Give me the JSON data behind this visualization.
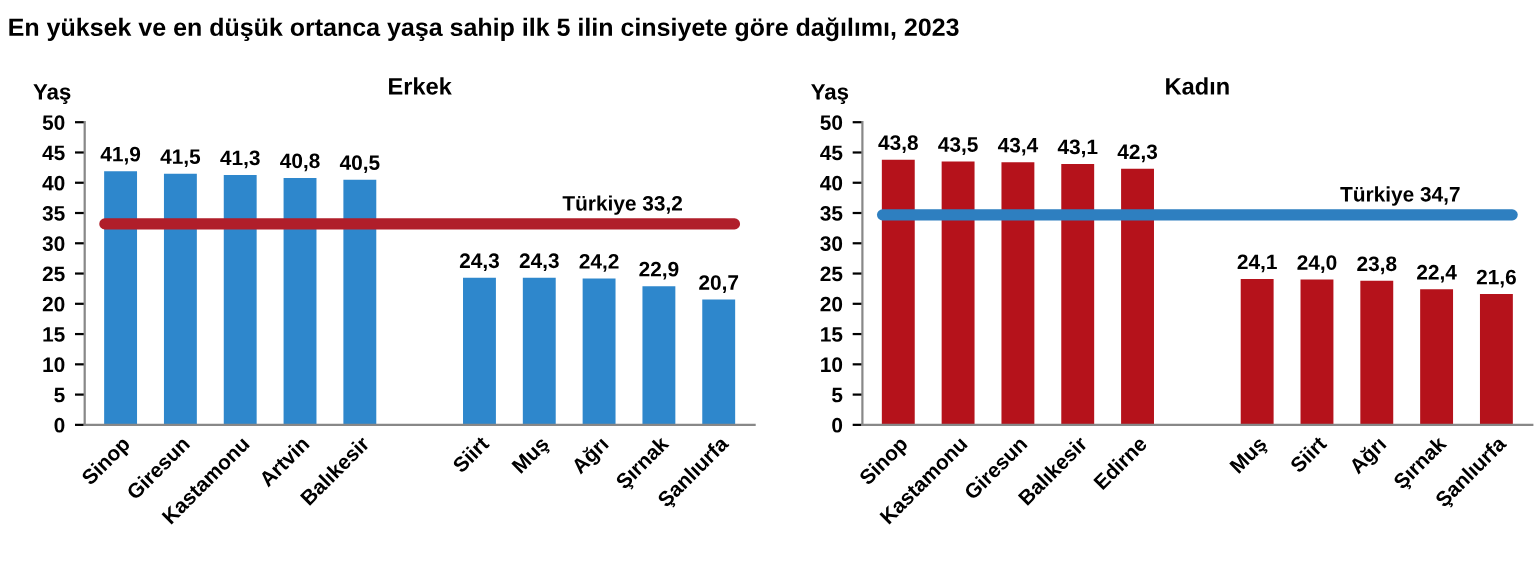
{
  "chart_data": [
    {
      "type": "bar",
      "title": "Erkek",
      "ylabel": "Yaş",
      "annotations": [
        "En yüksek ve en düşük ortanca yaşa sahip ilk 5 ilin cinsiyete göre dağılımı, 2023"
      ],
      "categories": [
        "Sinop",
        "Giresun",
        "Kastamonu",
        "Artvin",
        "Balıkesir",
        null,
        "Siirt",
        "Muş",
        "Ağrı",
        "Şırnak",
        "Şanlıurfa"
      ],
      "series": [
        {
          "color": "#2e87cc",
          "values": [
            41.9,
            41.5,
            41.3,
            40.8,
            40.5,
            null,
            24.3,
            24.3,
            24.2,
            22.9,
            20.7
          ],
          "value_labels": [
            "41,9",
            "41,5",
            "41,3",
            "40,8",
            "40,5",
            null,
            "24,3",
            "24,3",
            "24,2",
            "22,9",
            "20,7"
          ]
        }
      ],
      "ylim": [
        0,
        50
      ],
      "yticks": [
        0,
        5,
        10,
        15,
        20,
        25,
        30,
        35,
        40,
        45,
        50
      ],
      "grid": false,
      "legend": false,
      "ref_lines": [
        {
          "axis": "y",
          "value": 33.2,
          "label": "Türkiye 33,2",
          "color": "#b01e2a"
        }
      ]
    },
    {
      "type": "bar",
      "title": "Kadın",
      "ylabel": "Yaş",
      "categories": [
        "Sinop",
        "Kastamonu",
        "Giresun",
        "Balıkesir",
        "Edirne",
        null,
        "Muş",
        "Siirt",
        "Ağrı",
        "Şırnak",
        "Şanlıurfa"
      ],
      "series": [
        {
          "color": "#b5121b",
          "values": [
            43.8,
            43.5,
            43.4,
            43.1,
            42.3,
            null,
            24.1,
            24.0,
            23.8,
            22.4,
            21.6
          ],
          "value_labels": [
            "43,8",
            "43,5",
            "43,4",
            "43,1",
            "42,3",
            null,
            "24,1",
            "24,0",
            "23,8",
            "22,4",
            "21,6"
          ]
        }
      ],
      "ylim": [
        0,
        50
      ],
      "yticks": [
        0,
        5,
        10,
        15,
        20,
        25,
        30,
        35,
        40,
        45,
        50
      ],
      "grid": false,
      "legend": false,
      "ref_lines": [
        {
          "axis": "y",
          "value": 34.7,
          "label": "Türkiye 34,7",
          "color": "#2e7fc0"
        }
      ]
    }
  ]
}
